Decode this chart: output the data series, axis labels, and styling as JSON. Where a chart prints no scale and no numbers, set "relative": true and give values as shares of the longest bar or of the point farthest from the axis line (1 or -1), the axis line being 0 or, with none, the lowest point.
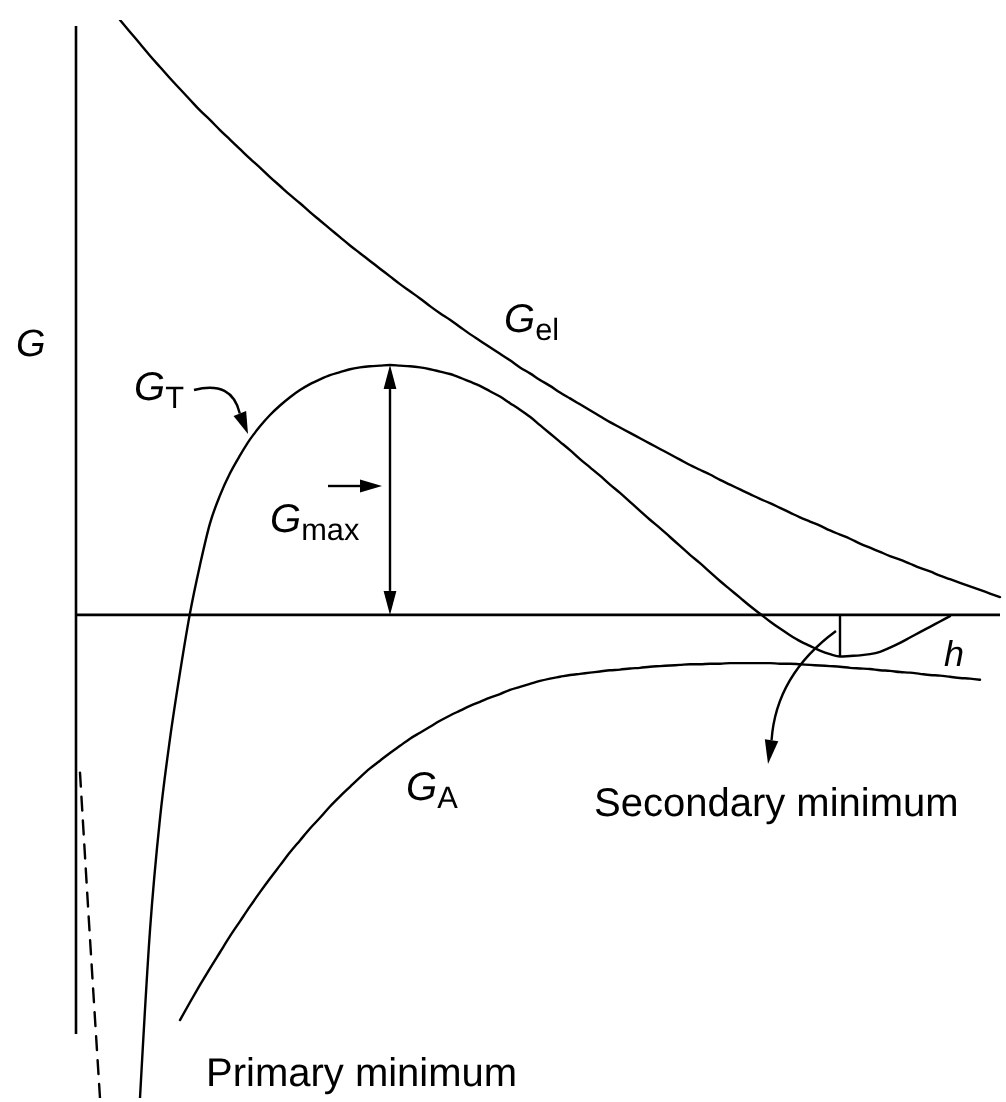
{
  "chart_data": {
    "type": "line",
    "relative": true,
    "xlabel": "h",
    "ylabel": "G",
    "marker": "none",
    "line_style": "solid",
    "categories": [
      null,
      null,
      null,
      null,
      null,
      null,
      null,
      null,
      null,
      null,
      null,
      null,
      null,
      null,
      null,
      null,
      null,
      null,
      null,
      null,
      null,
      null,
      null,
      null,
      null,
      null,
      null,
      null,
      null,
      null,
      null,
      null,
      null,
      null,
      null,
      null,
      null,
      null,
      null,
      null,
      null,
      null,
      null,
      null,
      null,
      null,
      null,
      null,
      null,
      null,
      null,
      null,
      null,
      null,
      null,
      null,
      null,
      null,
      null,
      null,
      null,
      null,
      null,
      null,
      null,
      null,
      null,
      null,
      null,
      null,
      null,
      null,
      null,
      null,
      null,
      null,
      null,
      null,
      null,
      null,
      null,
      null,
      null,
      null,
      null,
      null,
      null,
      null,
      null,
      null,
      null,
      null,
      null
    ],
    "series": [
      {
        "name": "G$_{el}$",
        "color": "#000000",
        "values": [
          null,
          null,
          null,
          null,
          1,
          0.98,
          0.96,
          0.94,
          0.921,
          0.902,
          0.884,
          0.866,
          0.848,
          0.832,
          0.815,
          0.799,
          0.783,
          0.767,
          0.752,
          0.736,
          0.721,
          0.706,
          0.692,
          0.677,
          0.663,
          0.649,
          0.635,
          0.621,
          0.608,
          0.595,
          0.582,
          0.569,
          0.556,
          0.544,
          0.532,
          0.519,
          0.507,
          0.496,
          0.484,
          0.472,
          0.461,
          0.45,
          0.439,
          0.428,
          0.416,
          0.406,
          0.395,
          0.385,
          0.374,
          0.364,
          0.354,
          0.344,
          0.334,
          0.324,
          0.315,
          0.306,
          0.297,
          0.288,
          0.279,
          0.27,
          0.261,
          0.252,
          0.244,
          0.236,
          0.227,
          0.219,
          0.211,
          0.203,
          0.195,
          0.188,
          0.18,
          0.172,
          0.164,
          0.157,
          0.15,
          0.142,
          0.135,
          0.128,
          0.12,
          0.113,
          0.106,
          0.099,
          0.093,
          0.086,
          0.079,
          0.073,
          0.066,
          0.06,
          0.054,
          0.048,
          0.042,
          0.036,
          0.03
        ]
      },
      {
        "name": "G$_{T}$",
        "color": "#000000",
        "values": [
          null,
          null,
          null,
          null,
          null,
          null,
          -0.812,
          -0.53,
          -0.342,
          -0.208,
          -0.097,
          0.003,
          0.084,
          0.154,
          0.201,
          0.238,
          0.268,
          0.295,
          0.317,
          0.336,
          0.352,
          0.366,
          0.378,
          0.388,
          0.396,
          0.403,
          0.408,
          0.413,
          0.416,
          0.418,
          0.419,
          0.42,
          0.419,
          0.418,
          0.416,
          0.413,
          0.409,
          0.405,
          0.399,
          0.392,
          0.385,
          0.376,
          0.367,
          0.356,
          0.345,
          0.333,
          0.319,
          0.305,
          0.291,
          0.277,
          0.262,
          0.248,
          0.234,
          0.219,
          0.205,
          0.19,
          0.175,
          0.16,
          0.146,
          0.131,
          0.116,
          0.101,
          0.087,
          0.072,
          0.057,
          0.043,
          0.029,
          0.015,
          0.002,
          -0.011,
          -0.023,
          -0.034,
          -0.044,
          -0.052,
          -0.06,
          -0.066,
          -0.07,
          -0.069,
          -0.068,
          -0.066,
          -0.062,
          -0.055,
          -0.047,
          -0.038,
          -0.029,
          -0.02,
          -0.011,
          -0.002,
          null,
          null,
          null,
          null,
          null
        ]
      },
      {
        "name": "G$_{A}$",
        "color": "#000000",
        "values": [
          null,
          null,
          null,
          null,
          null,
          null,
          null,
          null,
          null,
          null,
          -0.681,
          -0.651,
          -0.622,
          -0.594,
          -0.567,
          -0.54,
          -0.515,
          -0.49,
          -0.466,
          -0.443,
          -0.421,
          -0.399,
          -0.379,
          -0.359,
          -0.341,
          -0.322,
          -0.305,
          -0.289,
          -0.273,
          -0.258,
          -0.245,
          -0.232,
          -0.22,
          -0.208,
          -0.198,
          -0.188,
          -0.178,
          -0.169,
          -0.161,
          -0.153,
          -0.146,
          -0.139,
          -0.133,
          -0.126,
          -0.121,
          -0.116,
          -0.111,
          -0.107,
          -0.104,
          -0.101,
          -0.099,
          -0.097,
          -0.095,
          -0.093,
          -0.092,
          -0.09,
          -0.089,
          -0.087,
          -0.086,
          -0.085,
          -0.084,
          -0.083,
          -0.083,
          -0.082,
          -0.082,
          -0.081,
          -0.081,
          -0.081,
          -0.081,
          -0.081,
          -0.082,
          -0.082,
          -0.083,
          -0.084,
          -0.085,
          -0.086,
          -0.087,
          -0.089,
          -0.09,
          -0.091,
          -0.093,
          -0.094,
          -0.096,
          -0.097,
          -0.099,
          -0.101,
          -0.102,
          -0.104,
          -0.106,
          -0.107,
          -0.109,
          null,
          null
        ]
      },
      {
        "color": "#000000",
        "line_style": "dashed",
        "values": [
          -0.265,
          -0.544,
          -0.812,
          null,
          null,
          null,
          null,
          null,
          null,
          null,
          null,
          null,
          null,
          null,
          null,
          null,
          null,
          null,
          null,
          null,
          null,
          null,
          null,
          null,
          null,
          null,
          null,
          null,
          null,
          null,
          null,
          null,
          null,
          null,
          null,
          null,
          null,
          null,
          null,
          null,
          null,
          null,
          null,
          null,
          null,
          null,
          null,
          null,
          null,
          null,
          null,
          null,
          null,
          null,
          null,
          null,
          null,
          null,
          null,
          null,
          null,
          null,
          null,
          null,
          null,
          null,
          null,
          null,
          null,
          null,
          null,
          null,
          null,
          null,
          null,
          null,
          null,
          null,
          null,
          null,
          null,
          null,
          null,
          null,
          null,
          null,
          null,
          null,
          null,
          null,
          null,
          null,
          null
        ]
      }
    ],
    "annotations": [
      "G$_{max}$",
      "Secondary minimum",
      "Primary minimum"
    ]
  }
}
